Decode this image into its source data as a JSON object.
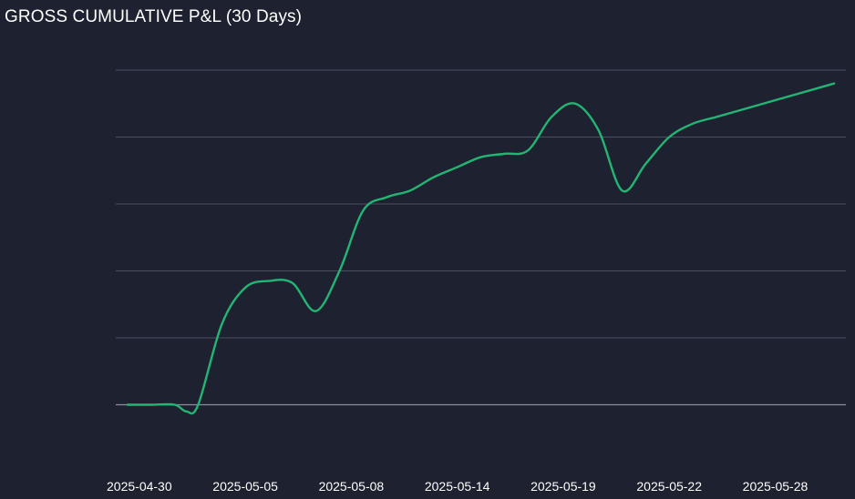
{
  "panel": {
    "title": "GROSS CUMULATIVE P&L (30 Days)"
  },
  "colors": {
    "background": "#1e2130",
    "line": "#22b573",
    "grid": "#4a4f63",
    "zero_line": "#8a8fa0"
  },
  "chart_data": {
    "type": "line",
    "title": "GROSS CUMULATIVE P&L (30 Days)",
    "xlabel": "",
    "ylabel": "",
    "y_tick_labels_visible": false,
    "grid": true,
    "ylim": [
      -1,
      5
    ],
    "y_gridlines": [
      0,
      1,
      2,
      3,
      4,
      5
    ],
    "x_tick_labels": [
      "2025-04-30",
      "2025-05-05",
      "2025-05-08",
      "2025-05-14",
      "2025-05-19",
      "2025-05-22",
      "2025-05-28"
    ],
    "x_tick_positions": [
      0.5,
      5,
      9.5,
      14,
      18.5,
      23,
      27.5
    ],
    "series": [
      {
        "x": [
          0,
          1,
          2,
          2.5,
          3,
          4,
          5,
          6,
          7,
          8,
          9,
          10,
          11,
          12,
          13,
          14,
          15,
          16,
          17,
          18,
          19,
          20,
          21,
          22,
          23,
          24,
          25,
          26,
          27,
          28,
          29,
          30
        ],
        "y": [
          0.0,
          0.0,
          0.0,
          -0.1,
          0.0,
          1.2,
          1.75,
          1.85,
          1.82,
          1.4,
          2.0,
          2.9,
          3.1,
          3.2,
          3.4,
          3.55,
          3.7,
          3.75,
          3.8,
          4.3,
          4.5,
          4.1,
          3.2,
          3.6,
          4.0,
          4.2,
          4.3,
          4.4,
          4.5,
          4.6,
          4.7,
          4.8
        ]
      }
    ]
  }
}
